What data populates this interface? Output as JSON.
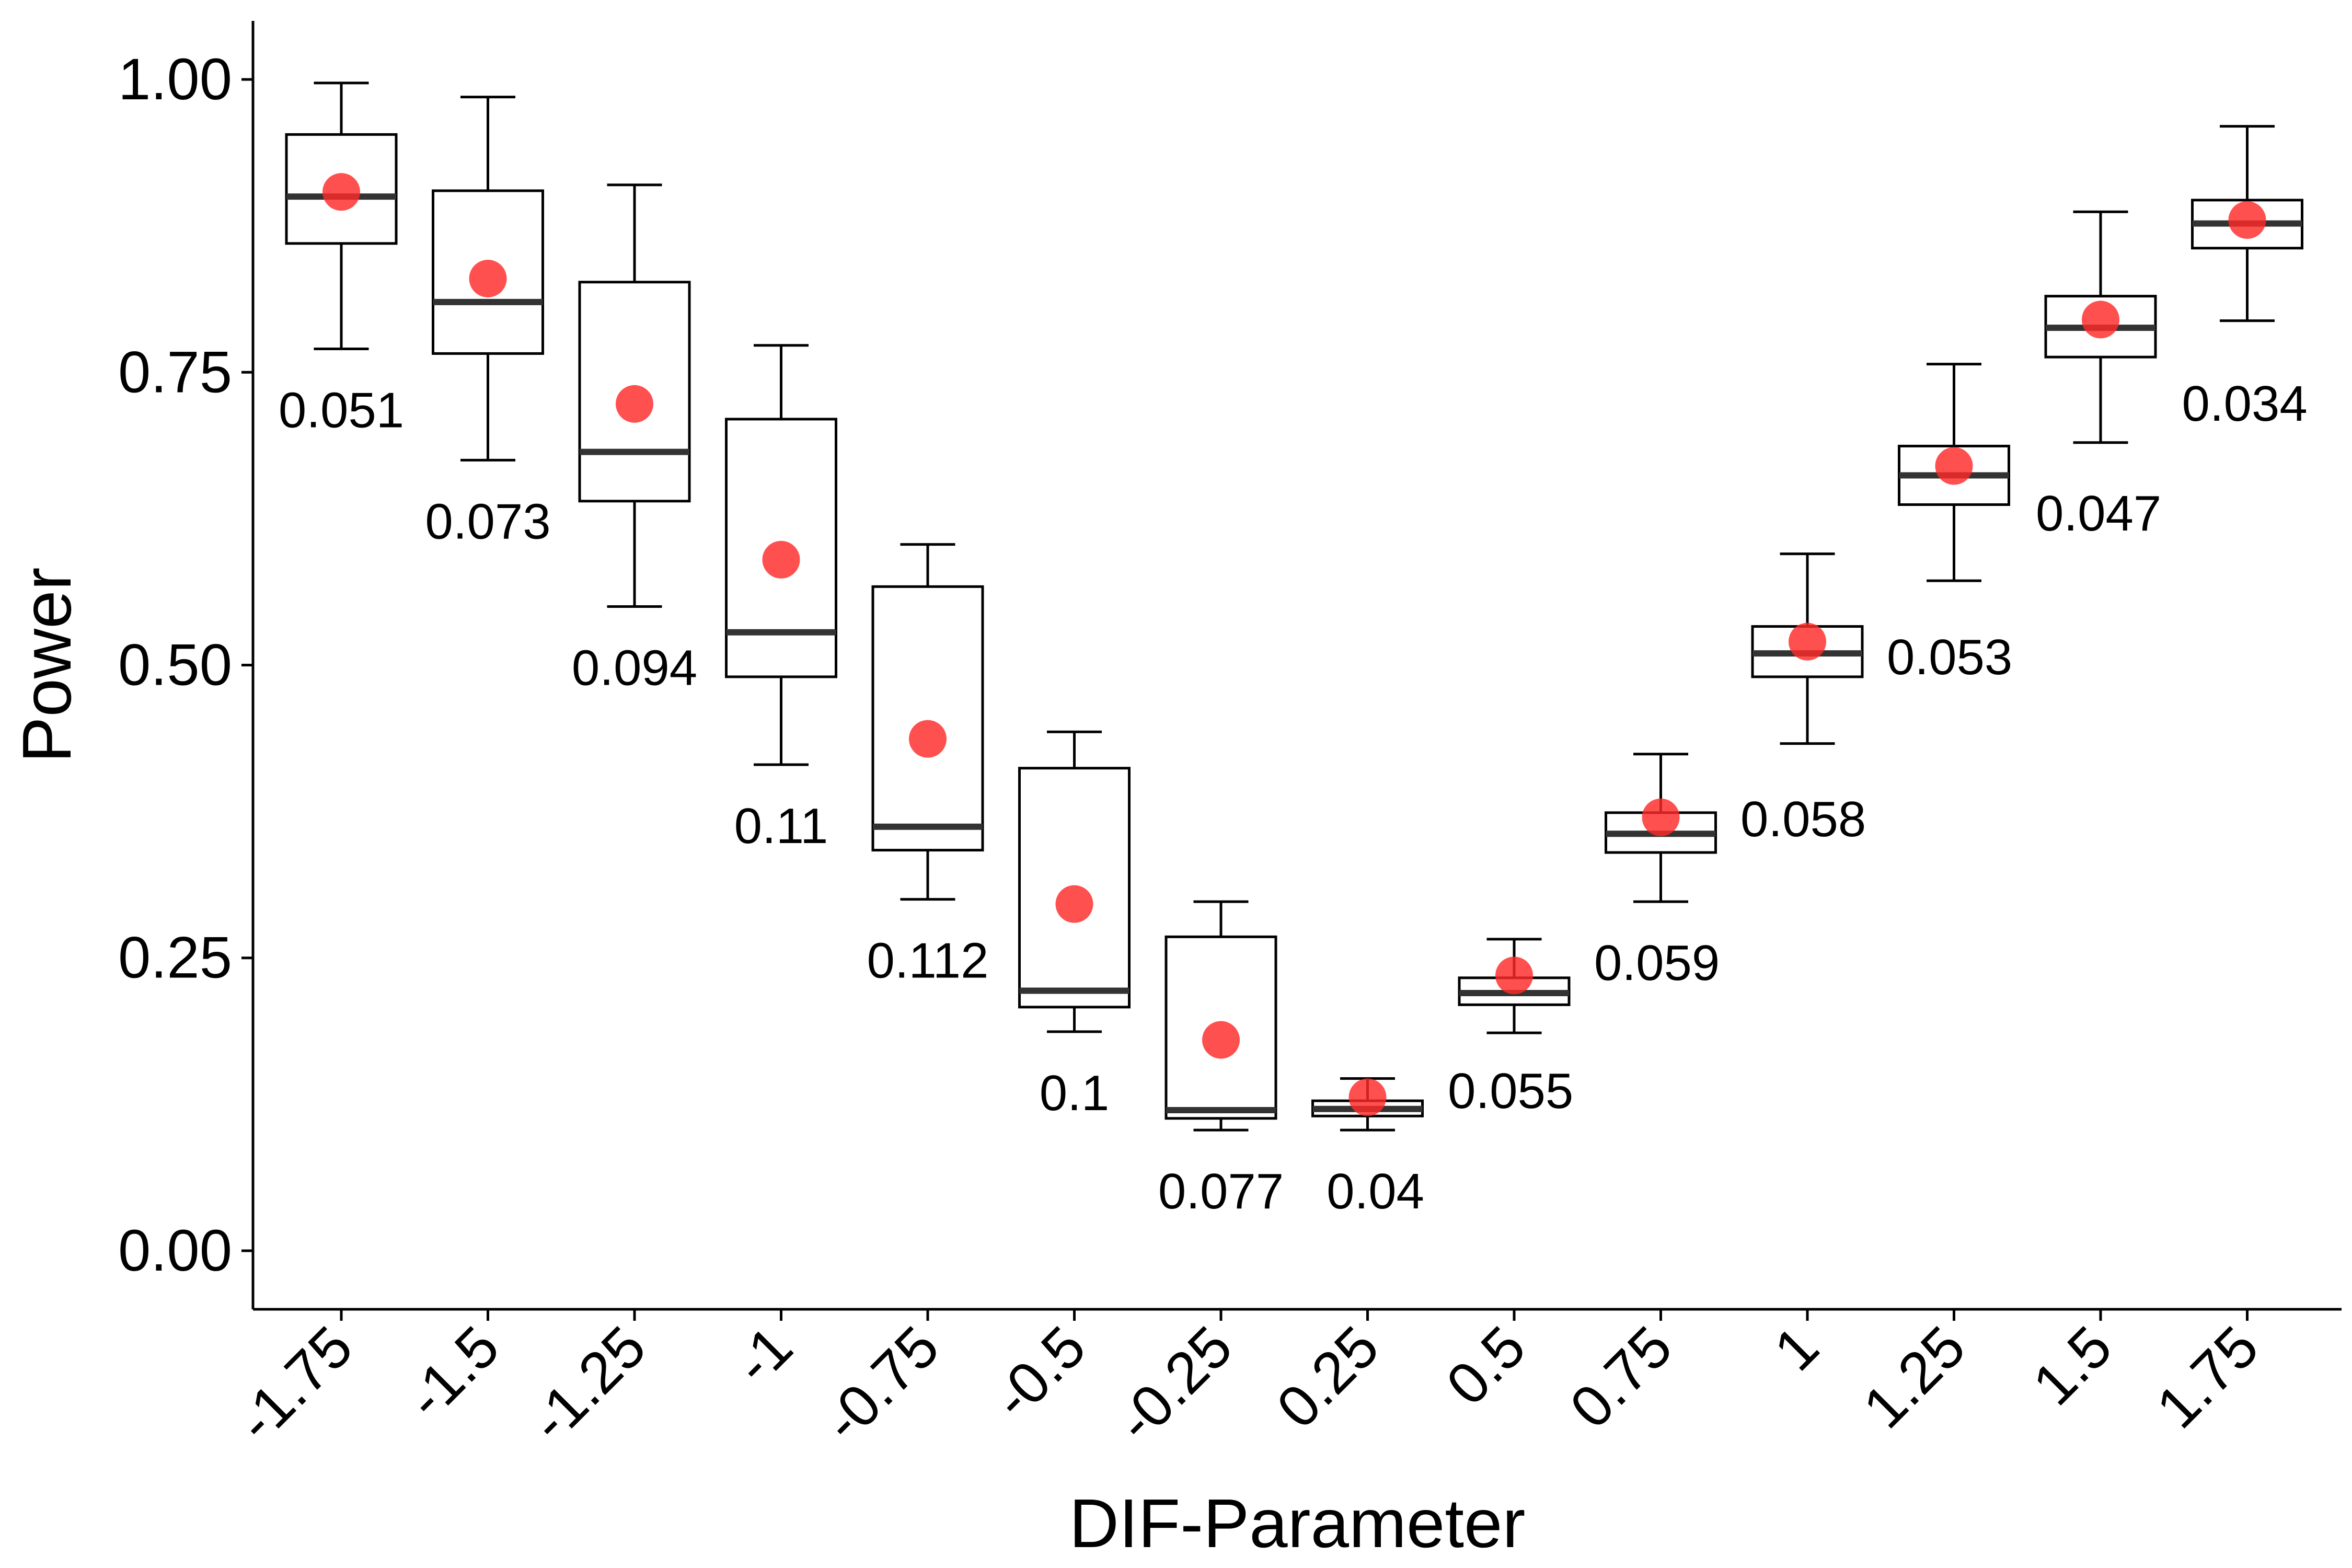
{
  "chart_data": {
    "type": "box",
    "xlabel": "DIF-Parameter",
    "ylabel": "Power",
    "ylim": [
      -0.05,
      1.05
    ],
    "yticks": [
      "0.00",
      "0.25",
      "0.50",
      "0.75",
      "1.00"
    ],
    "grid": false,
    "legend": "none",
    "categories": [
      "-1.75",
      "-1.5",
      "-1.25",
      "-1",
      "-0.75",
      "-0.5",
      "-0.25",
      "0.25",
      "0.5",
      "0.75",
      "1",
      "1.25",
      "1.5",
      "1.75"
    ],
    "boxes": [
      {
        "min": 0.77,
        "q1": 0.86,
        "median": 0.9,
        "q3": 0.953,
        "max": 0.997
      },
      {
        "min": 0.675,
        "q1": 0.766,
        "median": 0.81,
        "q3": 0.905,
        "max": 0.985
      },
      {
        "min": 0.55,
        "q1": 0.64,
        "median": 0.682,
        "q3": 0.827,
        "max": 0.91
      },
      {
        "min": 0.415,
        "q1": 0.49,
        "median": 0.528,
        "q3": 0.71,
        "max": 0.773
      },
      {
        "min": 0.3,
        "q1": 0.342,
        "median": 0.362,
        "q3": 0.567,
        "max": 0.603
      },
      {
        "min": 0.187,
        "q1": 0.208,
        "median": 0.222,
        "q3": 0.412,
        "max": 0.443
      },
      {
        "min": 0.103,
        "q1": 0.113,
        "median": 0.12,
        "q3": 0.268,
        "max": 0.298
      },
      {
        "min": 0.103,
        "q1": 0.115,
        "median": 0.121,
        "q3": 0.128,
        "max": 0.147
      },
      {
        "min": 0.186,
        "q1": 0.21,
        "median": 0.22,
        "q3": 0.233,
        "max": 0.266
      },
      {
        "min": 0.298,
        "q1": 0.34,
        "median": 0.356,
        "q3": 0.374,
        "max": 0.424
      },
      {
        "min": 0.433,
        "q1": 0.49,
        "median": 0.51,
        "q3": 0.533,
        "max": 0.595
      },
      {
        "min": 0.572,
        "q1": 0.637,
        "median": 0.662,
        "q3": 0.687,
        "max": 0.757
      },
      {
        "min": 0.69,
        "q1": 0.763,
        "median": 0.788,
        "q3": 0.815,
        "max": 0.887
      },
      {
        "min": 0.794,
        "q1": 0.856,
        "median": 0.877,
        "q3": 0.897,
        "max": 0.96
      }
    ],
    "means": [
      0.904,
      0.83,
      0.723,
      0.59,
      0.437,
      0.296,
      0.18,
      0.131,
      0.235,
      0.37,
      0.52,
      0.67,
      0.795,
      0.88
    ],
    "annotations": [
      "0.051",
      "0.073",
      "0.094",
      "0.11",
      "0.112",
      "0.1",
      "0.077",
      "0.04",
      "0.055",
      "0.059",
      "0.058",
      "0.053",
      "0.047",
      "0.034"
    ],
    "colors": {
      "mean_point": "#ff2a2a",
      "box_stroke": "#000000",
      "median": "#333333"
    }
  }
}
